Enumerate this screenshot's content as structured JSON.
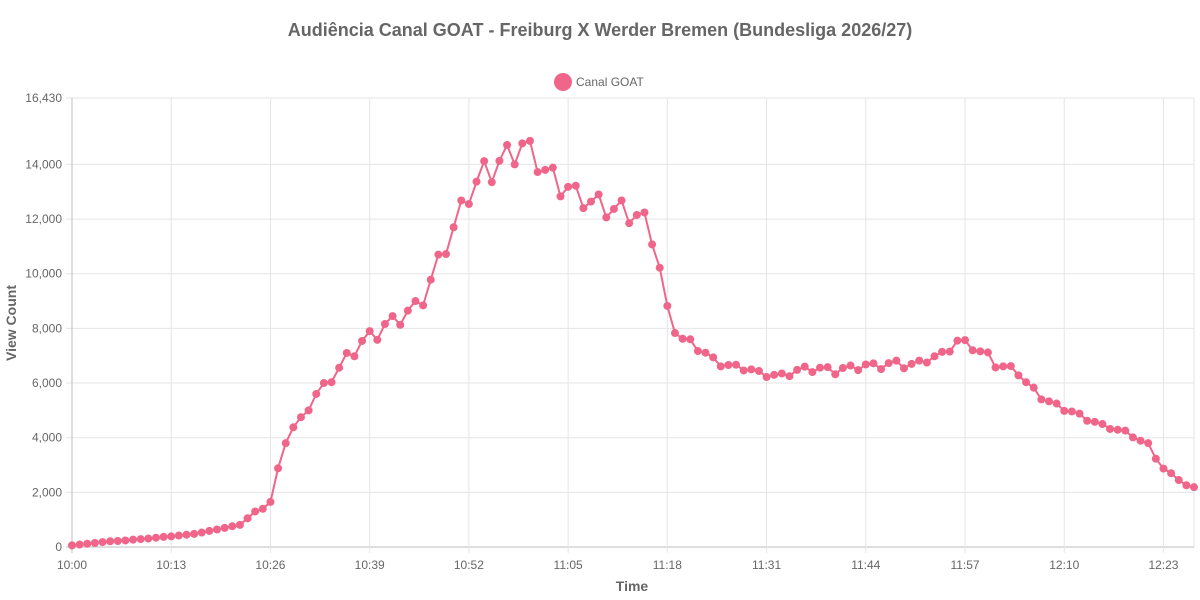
{
  "chart_data": {
    "type": "line",
    "title": "Audiência Canal GOAT - Freiburg X Werder Bremen (Bundesliga 2026/27)",
    "xlabel": "Time",
    "ylabel": "View Count",
    "ylim": [
      0,
      16430
    ],
    "y_ticks": [
      0,
      2000,
      4000,
      6000,
      8000,
      10000,
      12000,
      14000,
      16430
    ],
    "y_tick_labels": [
      "0",
      "2,000",
      "4,000",
      "6,000",
      "8,000",
      "10,000",
      "12,000",
      "14,000",
      "16,430"
    ],
    "x_tick_labels": [
      "10:00",
      "10:13",
      "10:26",
      "10:39",
      "10:52",
      "11:05",
      "11:18",
      "11:31",
      "11:44",
      "11:57",
      "12:10",
      "12:23"
    ],
    "x_tick_minutes": [
      0,
      13,
      26,
      39,
      52,
      65,
      78,
      91,
      104,
      117,
      130,
      143
    ],
    "x_range_minutes": [
      0,
      147
    ],
    "x_start_label": "10:00",
    "grid": true,
    "legend_position": "top-center",
    "series": [
      {
        "name": "Canal GOAT",
        "color": "#f0668a",
        "values": [
          60,
          90,
          120,
          150,
          180,
          210,
          220,
          240,
          270,
          290,
          310,
          340,
          370,
          390,
          420,
          450,
          480,
          530,
          590,
          640,
          700,
          760,
          810,
          1050,
          1300,
          1400,
          1650,
          2880,
          3800,
          4380,
          4750,
          5000,
          5600,
          6000,
          6030,
          6560,
          7100,
          6980,
          7540,
          7900,
          7580,
          8160,
          8450,
          8130,
          8650,
          9000,
          8840,
          9780,
          10700,
          10720,
          11700,
          12680,
          12550,
          13370,
          14120,
          13350,
          14130,
          14710,
          14000,
          14770,
          14860,
          13720,
          13800,
          13880,
          12830,
          13180,
          13220,
          12400,
          12640,
          12900,
          12060,
          12370,
          12680,
          11850,
          12150,
          12240,
          11070,
          10220,
          8820,
          7830,
          7620,
          7600,
          7170,
          7110,
          6940,
          6610,
          6660,
          6670,
          6460,
          6500,
          6440,
          6220,
          6300,
          6350,
          6250,
          6480,
          6600,
          6400,
          6560,
          6580,
          6320,
          6550,
          6640,
          6470,
          6680,
          6720,
          6510,
          6730,
          6820,
          6540,
          6700,
          6820,
          6750,
          6980,
          7140,
          7150,
          7550,
          7570,
          7200,
          7160,
          7120,
          6570,
          6610,
          6620,
          6280,
          6030,
          5830,
          5400,
          5330,
          5250,
          4980,
          4960,
          4880,
          4620,
          4580,
          4500,
          4320,
          4290,
          4260,
          4010,
          3890,
          3800,
          3230,
          2870,
          2700,
          2450,
          2260,
          2190
        ]
      }
    ]
  }
}
